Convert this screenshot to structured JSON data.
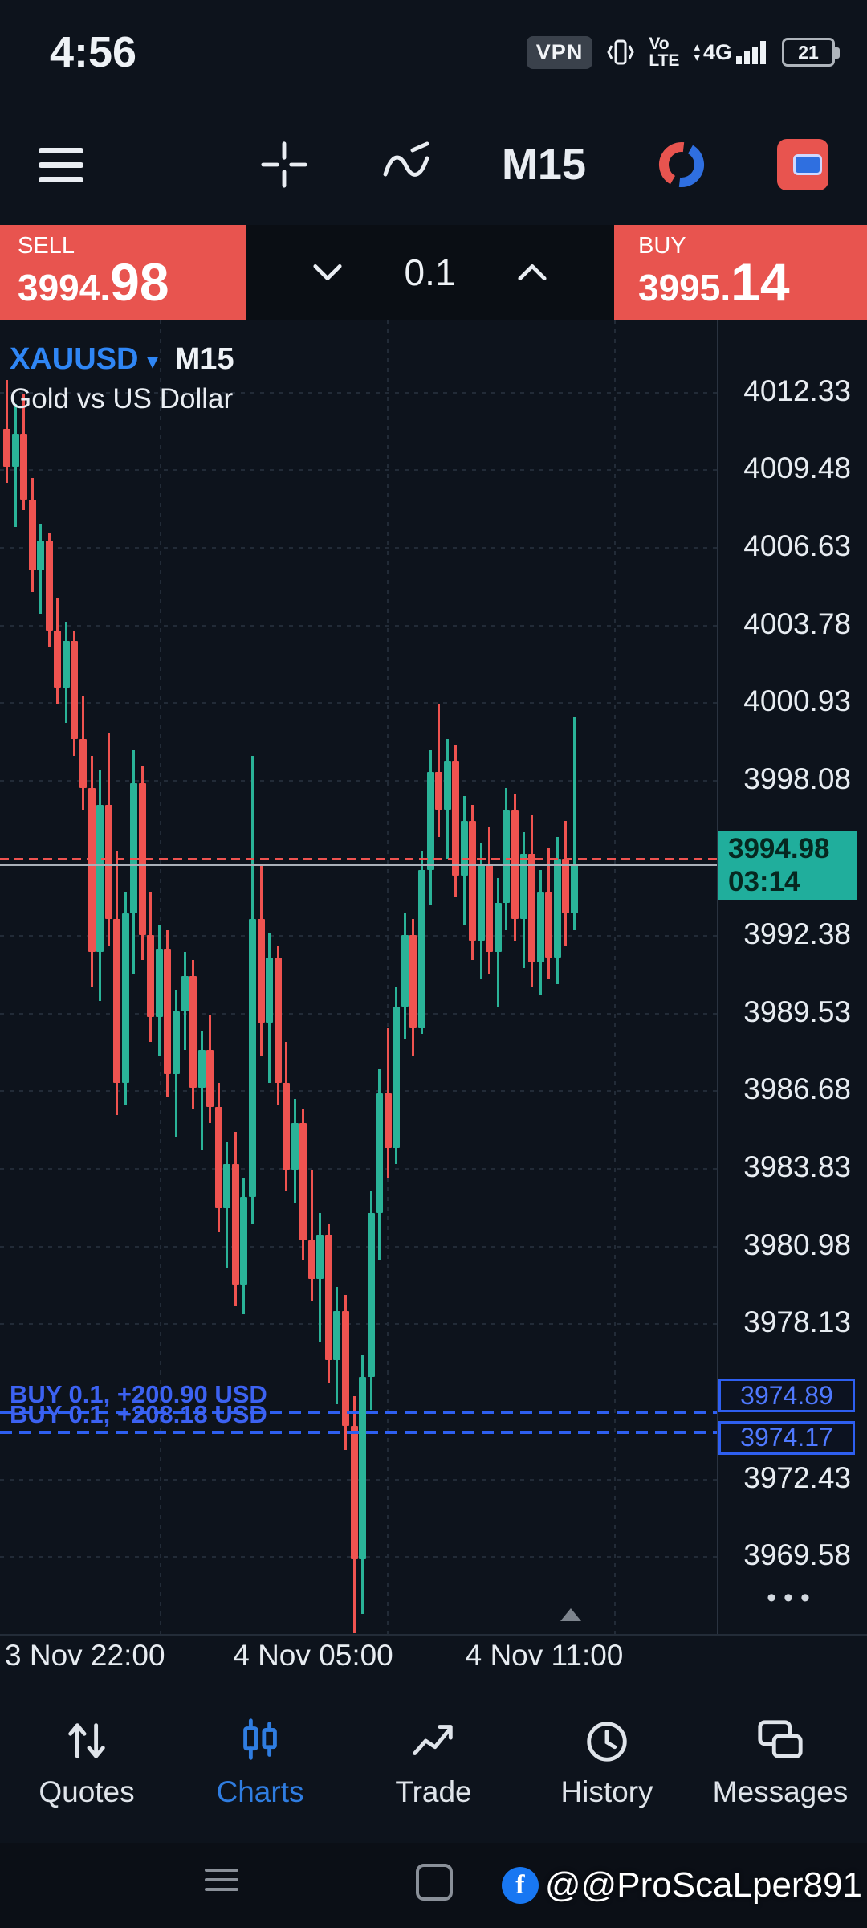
{
  "status_bar": {
    "time": "4:56",
    "vpn": "VPN",
    "vo": "Vo",
    "lte": "LTE",
    "network": "4G",
    "battery": "21"
  },
  "toolbar": {
    "timeframe": "M15"
  },
  "trade_panel": {
    "sell_label": "SELL",
    "sell_price_main": "3994.",
    "sell_price_big": "98",
    "volume": "0.1",
    "buy_label": "BUY",
    "buy_price_main": "3995.",
    "buy_price_big": "14"
  },
  "chart": {
    "symbol": "XAUUSD",
    "caret": "▾",
    "timeframe": "M15",
    "description": "Gold vs US Dollar",
    "more_dots": "•••",
    "time_labels": [
      "3 Nov 22:00",
      "4 Nov 05:00",
      "4 Nov 11:00"
    ]
  },
  "chart_data": {
    "type": "candlestick",
    "symbol": "XAUUSD",
    "timeframe": "M15",
    "title": "Gold vs US Dollar",
    "bid": 3994.98,
    "ask": 3995.14,
    "bar_countdown": "03:14",
    "ylim": [
      3966.7,
      4015.0
    ],
    "price_axis_ticks": [
      4012.33,
      4009.48,
      4006.63,
      4003.78,
      4000.93,
      3998.08,
      3992.38,
      3989.53,
      3986.68,
      3983.83,
      3980.98,
      3978.13,
      3972.43,
      3969.58
    ],
    "time_labels": [
      "3 Nov 22:00",
      "4 Nov 05:00",
      "4 Nov 11:00"
    ],
    "positions": [
      {
        "side": "BUY",
        "volume": 0.1,
        "open_price": 3974.89,
        "profit_usd": 200.9,
        "label": "BUY 0.1, +200.90 USD"
      },
      {
        "side": "BUY",
        "volume": 0.1,
        "open_price": 3974.17,
        "profit_usd": 208.18,
        "label": "BUY 0.1, +208.18 USD"
      }
    ],
    "ohlc": [
      [
        4011.0,
        4012.8,
        4009.0,
        4009.6
      ],
      [
        4009.6,
        4011.9,
        4007.4,
        4010.8
      ],
      [
        4010.8,
        4012.3,
        4008.0,
        4008.4
      ],
      [
        4008.4,
        4009.2,
        4005.0,
        4005.8
      ],
      [
        4005.8,
        4007.5,
        4004.2,
        4006.9
      ],
      [
        4006.9,
        4007.2,
        4003.0,
        4003.6
      ],
      [
        4003.6,
        4004.8,
        4000.9,
        4001.5
      ],
      [
        4001.5,
        4003.9,
        4000.2,
        4003.2
      ],
      [
        4003.2,
        4003.6,
        3999.0,
        3999.6
      ],
      [
        3999.6,
        4001.2,
        3997.0,
        3997.8
      ],
      [
        3997.8,
        3999.0,
        3990.5,
        3991.8
      ],
      [
        3991.8,
        3998.5,
        3990.0,
        3997.2
      ],
      [
        3997.2,
        3999.8,
        3992.0,
        3993.0
      ],
      [
        3993.0,
        3995.5,
        3985.8,
        3987.0
      ],
      [
        3987.0,
        3994.0,
        3986.2,
        3993.2
      ],
      [
        3993.2,
        3999.2,
        3991.0,
        3998.0
      ],
      [
        3998.0,
        3998.6,
        3991.5,
        3992.4
      ],
      [
        3992.4,
        3994.0,
        3988.5,
        3989.4
      ],
      [
        3989.4,
        3992.8,
        3988.0,
        3991.9
      ],
      [
        3991.9,
        3992.6,
        3986.5,
        3987.3
      ],
      [
        3987.3,
        3990.4,
        3985.0,
        3989.6
      ],
      [
        3989.6,
        3991.8,
        3988.2,
        3990.9
      ],
      [
        3990.9,
        3991.5,
        3986.0,
        3986.8
      ],
      [
        3986.8,
        3988.9,
        3984.5,
        3988.2
      ],
      [
        3988.2,
        3989.5,
        3985.5,
        3986.1
      ],
      [
        3986.1,
        3987.0,
        3981.5,
        3982.4
      ],
      [
        3982.4,
        3984.8,
        3980.2,
        3984.0
      ],
      [
        3984.0,
        3985.2,
        3978.8,
        3979.6
      ],
      [
        3979.6,
        3983.5,
        3978.5,
        3982.8
      ],
      [
        3982.8,
        3999.0,
        3981.8,
        3993.0
      ],
      [
        3993.0,
        3995.0,
        3988.0,
        3989.2
      ],
      [
        3989.2,
        3992.5,
        3987.0,
        3991.6
      ],
      [
        3991.6,
        3992.0,
        3986.2,
        3987.0
      ],
      [
        3987.0,
        3988.5,
        3983.0,
        3983.8
      ],
      [
        3983.8,
        3986.4,
        3982.6,
        3985.5
      ],
      [
        3985.5,
        3986.0,
        3980.5,
        3981.2
      ],
      [
        3981.2,
        3983.8,
        3979.0,
        3979.8
      ],
      [
        3979.8,
        3982.2,
        3977.5,
        3981.4
      ],
      [
        3981.4,
        3981.8,
        3976.0,
        3976.8
      ],
      [
        3976.8,
        3979.5,
        3975.2,
        3978.6
      ],
      [
        3978.6,
        3979.2,
        3973.5,
        3974.4
      ],
      [
        3974.4,
        3975.5,
        3966.8,
        3969.5
      ],
      [
        3969.5,
        3977.0,
        3967.5,
        3976.2
      ],
      [
        3976.2,
        3983.0,
        3975.0,
        3982.2
      ],
      [
        3982.2,
        3987.5,
        3980.5,
        3986.6
      ],
      [
        3986.6,
        3989.0,
        3983.5,
        3984.6
      ],
      [
        3984.6,
        3990.5,
        3984.0,
        3989.8
      ],
      [
        3989.8,
        3993.2,
        3988.6,
        3992.4
      ],
      [
        3992.4,
        3993.0,
        3988.0,
        3989.0
      ],
      [
        3989.0,
        3995.5,
        3988.8,
        3994.8
      ],
      [
        3994.8,
        3999.2,
        3993.5,
        3998.4
      ],
      [
        3998.4,
        4000.9,
        3996.0,
        3997.0
      ],
      [
        3997.0,
        3999.6,
        3995.2,
        3998.8
      ],
      [
        3998.8,
        3999.4,
        3993.8,
        3994.6
      ],
      [
        3994.6,
        3997.5,
        3992.8,
        3996.6
      ],
      [
        3996.6,
        3997.2,
        3991.5,
        3992.2
      ],
      [
        3992.2,
        3995.8,
        3990.8,
        3995.0
      ],
      [
        3995.0,
        3996.4,
        3991.0,
        3991.8
      ],
      [
        3991.8,
        3994.5,
        3989.8,
        3993.6
      ],
      [
        3993.6,
        3997.8,
        3992.6,
        3997.0
      ],
      [
        3997.0,
        3997.6,
        3992.2,
        3993.0
      ],
      [
        3993.0,
        3996.2,
        3991.2,
        3995.4
      ],
      [
        3995.4,
        3996.8,
        3990.5,
        3991.4
      ],
      [
        3991.4,
        3994.8,
        3990.2,
        3994.0
      ],
      [
        3994.0,
        3995.6,
        3990.8,
        3991.6
      ],
      [
        3991.6,
        3996.0,
        3990.6,
        3995.2
      ],
      [
        3995.2,
        3996.6,
        3992.0,
        3993.2
      ],
      [
        3993.2,
        4000.4,
        3992.6,
        3994.98
      ]
    ]
  },
  "bottom_nav": {
    "items": [
      {
        "label": "Quotes"
      },
      {
        "label": "Charts"
      },
      {
        "label": "Trade"
      },
      {
        "label": "History"
      },
      {
        "label": "Messages"
      }
    ],
    "active": "Charts"
  },
  "nav_bar": {
    "watermark": "@@ProScaLper891"
  },
  "colors": {
    "candle_up": "#2ab398",
    "candle_down": "#ef5350",
    "panel_red": "#e8544f",
    "accent_blue": "#2f86f5",
    "position_blue": "#2e5ff0",
    "current_price_teal": "#20ae9c"
  }
}
